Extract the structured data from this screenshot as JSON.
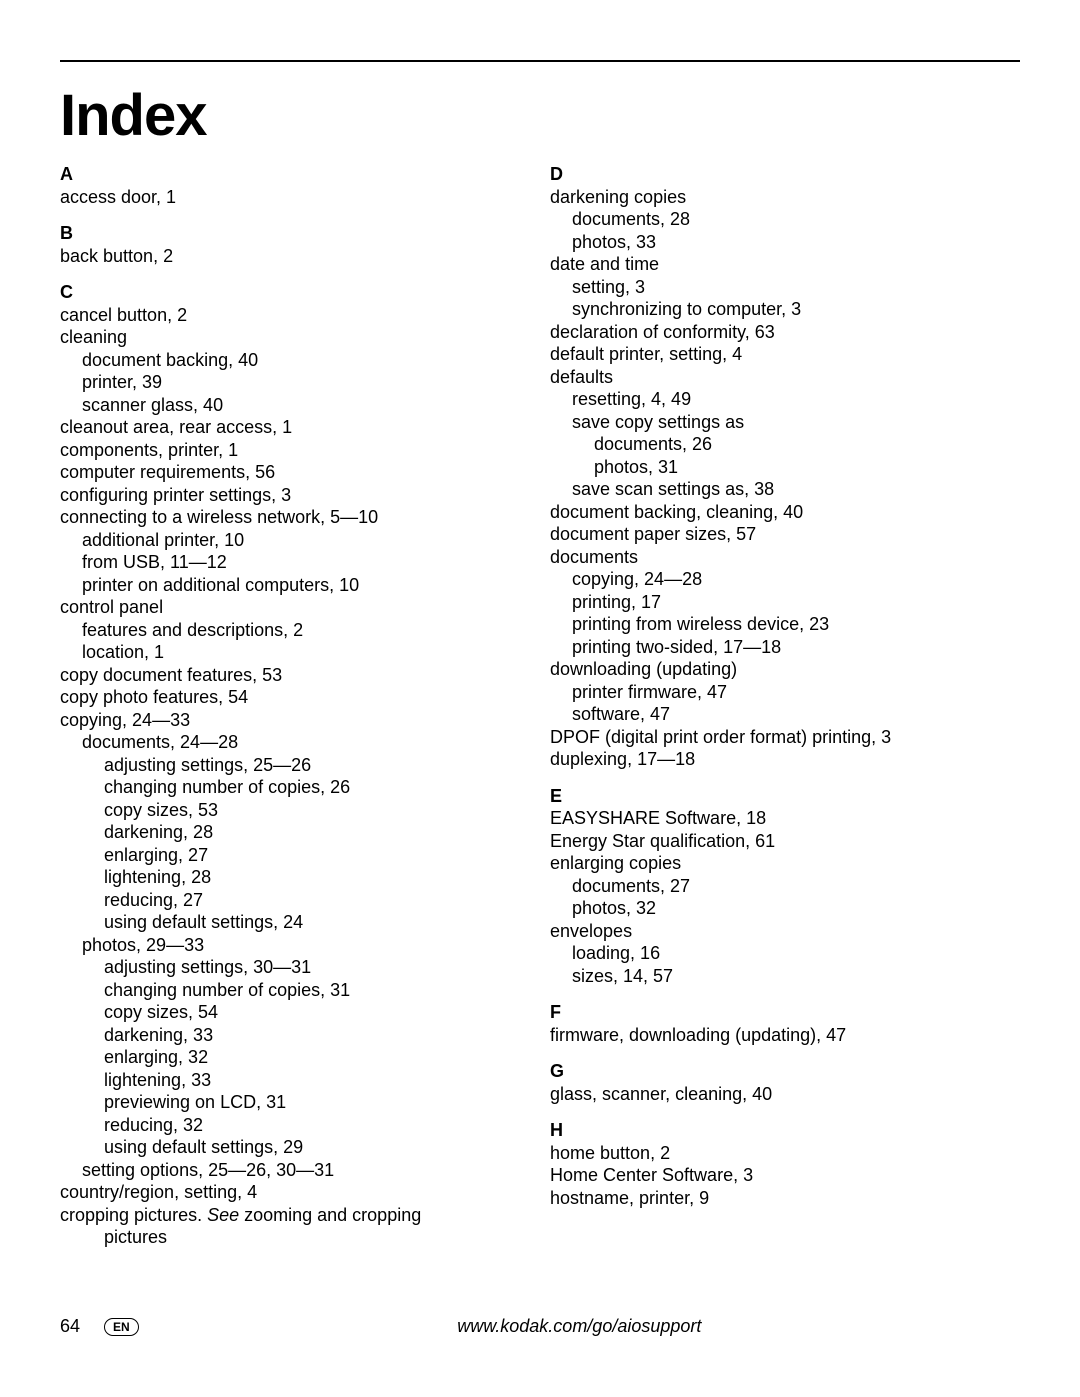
{
  "title": "Index",
  "footer": {
    "page": "64",
    "lang": "EN",
    "url": "www.kodak.com/go/aiosupport"
  },
  "left": {
    "A": {
      "letter": "A",
      "lines": [
        {
          "cls": "entry",
          "text": "access door, 1"
        }
      ]
    },
    "B": {
      "letter": "B",
      "lines": [
        {
          "cls": "entry",
          "text": "back button, 2"
        }
      ]
    },
    "C": {
      "letter": "C",
      "lines": [
        {
          "cls": "entry",
          "text": "cancel button, 2"
        },
        {
          "cls": "entry",
          "text": "cleaning"
        },
        {
          "cls": "entry1",
          "text": "document backing, 40"
        },
        {
          "cls": "entry1",
          "text": "printer, 39"
        },
        {
          "cls": "entry1",
          "text": "scanner glass, 40"
        },
        {
          "cls": "entry",
          "text": "cleanout area, rear access, 1"
        },
        {
          "cls": "entry",
          "text": "components, printer, 1"
        },
        {
          "cls": "entry",
          "text": "computer requirements, 56"
        },
        {
          "cls": "entry",
          "text": "configuring printer settings, 3"
        },
        {
          "cls": "entry",
          "text": "connecting to a wireless network, 5—10"
        },
        {
          "cls": "entry1",
          "text": "additional printer, 10"
        },
        {
          "cls": "entry1",
          "text": "from USB, 11—12"
        },
        {
          "cls": "entry1",
          "text": "printer on additional computers, 10"
        },
        {
          "cls": "entry",
          "text": "control panel"
        },
        {
          "cls": "entry1",
          "text": "features and descriptions, 2"
        },
        {
          "cls": "entry1",
          "text": "location, 1"
        },
        {
          "cls": "entry",
          "text": "copy document features, 53"
        },
        {
          "cls": "entry",
          "text": "copy photo features, 54"
        },
        {
          "cls": "entry",
          "text": "copying, 24—33"
        },
        {
          "cls": "entry1",
          "text": "documents, 24—28"
        },
        {
          "cls": "entry2",
          "text": "adjusting settings, 25—26"
        },
        {
          "cls": "entry2",
          "text": "changing number of copies, 26"
        },
        {
          "cls": "entry2",
          "text": "copy sizes, 53"
        },
        {
          "cls": "entry2",
          "text": "darkening, 28"
        },
        {
          "cls": "entry2",
          "text": "enlarging, 27"
        },
        {
          "cls": "entry2",
          "text": "lightening, 28"
        },
        {
          "cls": "entry2",
          "text": "reducing, 27"
        },
        {
          "cls": "entry2",
          "text": "using default settings, 24"
        },
        {
          "cls": "entry1",
          "text": "photos, 29—33"
        },
        {
          "cls": "entry2",
          "text": "adjusting settings, 30—31"
        },
        {
          "cls": "entry2",
          "text": "changing number of copies, 31"
        },
        {
          "cls": "entry2",
          "text": "copy sizes, 54"
        },
        {
          "cls": "entry2",
          "text": "darkening, 33"
        },
        {
          "cls": "entry2",
          "text": "enlarging, 32"
        },
        {
          "cls": "entry2",
          "text": "lightening, 33"
        },
        {
          "cls": "entry2",
          "text": "previewing on LCD, 31"
        },
        {
          "cls": "entry2",
          "text": "reducing, 32"
        },
        {
          "cls": "entry2",
          "text": "using default settings, 29"
        },
        {
          "cls": "entry1",
          "text": "setting options, 25—26, 30—31"
        },
        {
          "cls": "entry",
          "text": "country/region, setting, 4"
        },
        {
          "cls": "entry",
          "html": "cropping pictures. <span class=\"ital\">See</span> zooming and cropping"
        },
        {
          "cls": "entry2",
          "text": "pictures"
        }
      ]
    }
  },
  "right": {
    "D": {
      "letter": "D",
      "lines": [
        {
          "cls": "entry",
          "text": "darkening copies"
        },
        {
          "cls": "entry1",
          "text": "documents, 28"
        },
        {
          "cls": "entry1",
          "text": "photos, 33"
        },
        {
          "cls": "entry",
          "text": "date and time"
        },
        {
          "cls": "entry1",
          "text": "setting, 3"
        },
        {
          "cls": "entry1",
          "text": "synchronizing to computer, 3"
        },
        {
          "cls": "entry",
          "text": "declaration of conformity, 63"
        },
        {
          "cls": "entry",
          "text": "default printer, setting, 4"
        },
        {
          "cls": "entry",
          "text": "defaults"
        },
        {
          "cls": "entry1",
          "text": "resetting, 4, 49"
        },
        {
          "cls": "entry1",
          "text": "save copy settings as"
        },
        {
          "cls": "entry2",
          "text": "documents, 26"
        },
        {
          "cls": "entry2",
          "text": "photos, 31"
        },
        {
          "cls": "entry1",
          "text": "save scan settings as, 38"
        },
        {
          "cls": "entry",
          "text": "document backing, cleaning, 40"
        },
        {
          "cls": "entry",
          "text": "document paper sizes, 57"
        },
        {
          "cls": "entry",
          "text": "documents"
        },
        {
          "cls": "entry1",
          "text": "copying, 24—28"
        },
        {
          "cls": "entry1",
          "text": "printing, 17"
        },
        {
          "cls": "entry1",
          "text": "printing from wireless device, 23"
        },
        {
          "cls": "entry1",
          "text": "printing two-sided, 17—18"
        },
        {
          "cls": "entry",
          "text": "downloading (updating)"
        },
        {
          "cls": "entry1",
          "text": "printer firmware, 47"
        },
        {
          "cls": "entry1",
          "text": "software, 47"
        },
        {
          "cls": "entry",
          "text": "DPOF (digital print order format) printing, 3"
        },
        {
          "cls": "entry",
          "text": "duplexing, 17—18"
        }
      ]
    },
    "E": {
      "letter": "E",
      "lines": [
        {
          "cls": "entry",
          "text": "EASYSHARE Software, 18"
        },
        {
          "cls": "entry",
          "text": "Energy Star qualification, 61"
        },
        {
          "cls": "entry",
          "text": "enlarging copies"
        },
        {
          "cls": "entry1",
          "text": "documents, 27"
        },
        {
          "cls": "entry1",
          "text": "photos, 32"
        },
        {
          "cls": "entry",
          "text": "envelopes"
        },
        {
          "cls": "entry1",
          "text": "loading, 16"
        },
        {
          "cls": "entry1",
          "text": "sizes, 14, 57"
        }
      ]
    },
    "F": {
      "letter": "F",
      "lines": [
        {
          "cls": "entry",
          "text": "firmware, downloading (updating), 47"
        }
      ]
    },
    "G": {
      "letter": "G",
      "lines": [
        {
          "cls": "entry",
          "text": "glass, scanner, cleaning, 40"
        }
      ]
    },
    "H": {
      "letter": "H",
      "lines": [
        {
          "cls": "entry",
          "text": "home button, 2"
        },
        {
          "cls": "entry",
          "text": "Home Center Software, 3"
        },
        {
          "cls": "entry",
          "text": "hostname, printer, 9"
        }
      ]
    }
  }
}
